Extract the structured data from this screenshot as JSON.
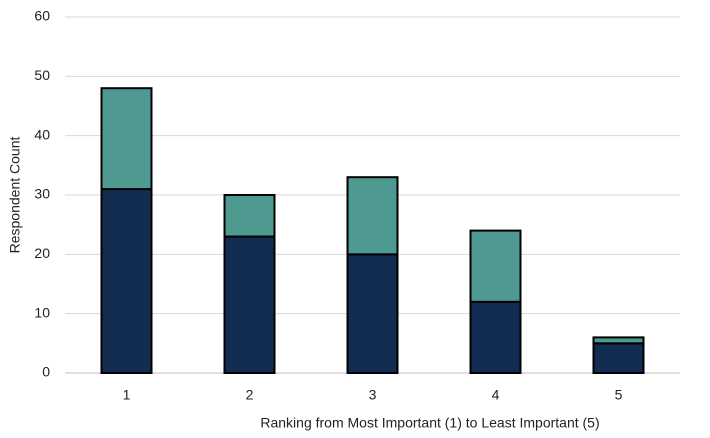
{
  "chart_data": {
    "type": "stacked_bar",
    "x_label": "Ranking from Most Important (1) to Least Important (5)",
    "y_label": "Respondent Count",
    "categories": [
      "1",
      "2",
      "3",
      "4",
      "5"
    ],
    "series": [
      {
        "color": "#132d52",
        "values": [
          31,
          23,
          20,
          12,
          5
        ]
      },
      {
        "color": "#4e9a91",
        "values": [
          17,
          7,
          13,
          12,
          1
        ]
      }
    ],
    "ylim": [
      0,
      60
    ],
    "yticks": [
      0,
      10,
      20,
      30,
      40,
      50,
      60
    ],
    "grid": true
  }
}
